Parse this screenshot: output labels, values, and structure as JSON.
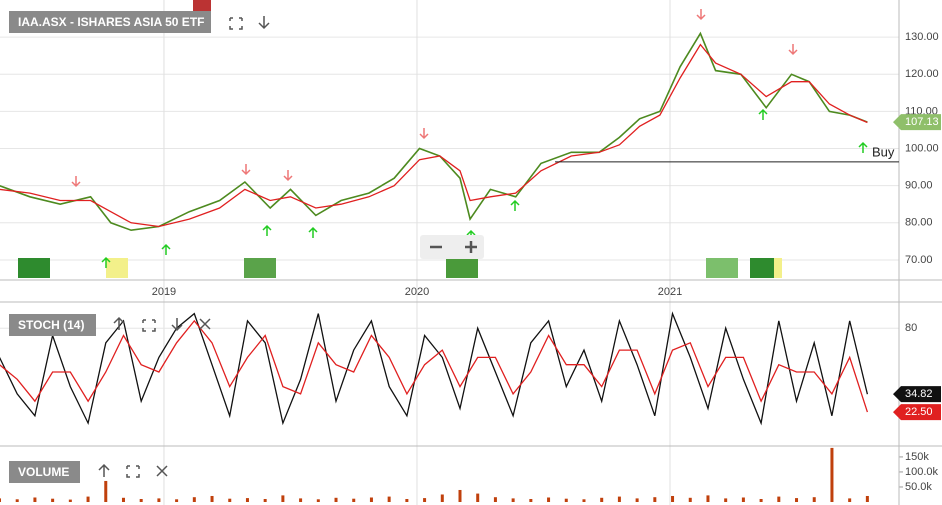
{
  "chart_data": [
    {
      "type": "line",
      "title": "IAA.ASX - ISHARES ASIA 50 ETF",
      "x": [
        2018.35,
        2018.47,
        2018.59,
        2018.71,
        2018.79,
        2018.87,
        2018.98,
        2019.1,
        2019.22,
        2019.32,
        2019.42,
        2019.5,
        2019.6,
        2019.7,
        2019.81,
        2019.91,
        2020.01,
        2020.09,
        2020.17,
        2020.21,
        2020.29,
        2020.39,
        2020.49,
        2020.61,
        2020.72,
        2020.8,
        2020.88,
        2020.96,
        2021.04,
        2021.12,
        2021.18,
        2021.28,
        2021.38,
        2021.48,
        2021.55,
        2021.63,
        2021.71,
        2021.78
      ],
      "series": [
        {
          "color": "#4d8a1f",
          "values": [
            90,
            87,
            85,
            87,
            80,
            78,
            79,
            83,
            86,
            91,
            84,
            89,
            82,
            86,
            88,
            92,
            100,
            98,
            92,
            81,
            89,
            87,
            96,
            99,
            99,
            103,
            108,
            110,
            122,
            131,
            121,
            120,
            111,
            120,
            118,
            110,
            109,
            107.13
          ]
        },
        {
          "color": "#e02020",
          "values": [
            89,
            88,
            86,
            86,
            83,
            80,
            79,
            81,
            84,
            89,
            86,
            87,
            84,
            85,
            87,
            90,
            97,
            98,
            94,
            86,
            87,
            88,
            94,
            98,
            99,
            101,
            106,
            109,
            119,
            128,
            123,
            120,
            114,
            118,
            118,
            112,
            109,
            107
          ]
        }
      ],
      "annotations": [
        {
          "text": "Buy",
          "value": 96.4
        }
      ],
      "xlim": [
        2018.352,
        2021.905
      ],
      "xticks": [
        2019,
        2020,
        2021
      ],
      "ylim": [
        64.6,
        140
      ],
      "yticks": [
        {
          "value": 70,
          "label": "70.00"
        },
        {
          "value": 80,
          "label": "80.00"
        },
        {
          "value": 90,
          "label": "90.00"
        },
        {
          "value": 100,
          "label": "100.00"
        },
        {
          "value": 110,
          "label": "110.00"
        },
        {
          "value": 120,
          "label": "120.00"
        },
        {
          "value": 130,
          "label": "130.00"
        }
      ],
      "grid": true
    },
    {
      "type": "line",
      "title": "STOCH (14)",
      "x": [
        2018.35,
        2018.42,
        2018.49,
        2018.56,
        2018.63,
        2018.7,
        2018.77,
        2018.84,
        2018.91,
        2018.98,
        2019.05,
        2019.12,
        2019.19,
        2019.26,
        2019.33,
        2019.4,
        2019.47,
        2019.54,
        2019.61,
        2019.68,
        2019.75,
        2019.82,
        2019.89,
        2019.96,
        2020.03,
        2020.1,
        2020.17,
        2020.24,
        2020.31,
        2020.38,
        2020.45,
        2020.52,
        2020.59,
        2020.66,
        2020.73,
        2020.8,
        2020.87,
        2020.94,
        2021.01,
        2021.08,
        2021.15,
        2021.22,
        2021.29,
        2021.36,
        2021.43,
        2021.5,
        2021.57,
        2021.64,
        2021.71,
        2021.78
      ],
      "series": [
        {
          "color": "#111111",
          "values": [
            60,
            35,
            20,
            75,
            40,
            15,
            70,
            85,
            30,
            60,
            80,
            90,
            55,
            20,
            85,
            70,
            15,
            45,
            90,
            30,
            65,
            85,
            40,
            20,
            75,
            60,
            25,
            80,
            50,
            20,
            70,
            85,
            40,
            65,
            30,
            85,
            55,
            20,
            90,
            60,
            25,
            80,
            45,
            15,
            85,
            30,
            70,
            20,
            85,
            34.82
          ]
        },
        {
          "color": "#e02020",
          "last_label": "22.50",
          "values": [
            55,
            45,
            30,
            50,
            50,
            30,
            50,
            75,
            55,
            50,
            70,
            85,
            70,
            40,
            60,
            75,
            40,
            35,
            70,
            55,
            50,
            75,
            60,
            35,
            55,
            65,
            40,
            60,
            60,
            35,
            50,
            75,
            55,
            55,
            40,
            65,
            65,
            35,
            65,
            70,
            40,
            60,
            60,
            30,
            55,
            50,
            50,
            35,
            60,
            22.5
          ]
        }
      ],
      "xlim": [
        2018.352,
        2021.905
      ],
      "ylim": [
        0,
        100
      ],
      "yticks": [
        80
      ],
      "grid": true
    },
    {
      "type": "bar",
      "title": "VOLUME",
      "color": "#c0400c",
      "x": [
        2018.35,
        2018.42,
        2018.49,
        2018.56,
        2018.63,
        2018.7,
        2018.77,
        2018.84,
        2018.91,
        2018.98,
        2019.05,
        2019.12,
        2019.19,
        2019.26,
        2019.33,
        2019.4,
        2019.47,
        2019.54,
        2019.61,
        2019.68,
        2019.75,
        2019.82,
        2019.89,
        2019.96,
        2020.03,
        2020.1,
        2020.17,
        2020.24,
        2020.31,
        2020.38,
        2020.45,
        2020.52,
        2020.59,
        2020.66,
        2020.73,
        2020.8,
        2020.87,
        2020.94,
        2021.01,
        2021.08,
        2021.15,
        2021.22,
        2021.29,
        2021.36,
        2021.43,
        2021.5,
        2021.57,
        2021.64,
        2021.71,
        2021.78
      ],
      "values": [
        12000,
        9000,
        15000,
        11000,
        8000,
        18000,
        70000,
        14000,
        10000,
        12000,
        9000,
        16000,
        20000,
        11000,
        13000,
        10000,
        22000,
        12000,
        9000,
        14000,
        11000,
        15000,
        18000,
        10000,
        13000,
        25000,
        40000,
        28000,
        16000,
        12000,
        10000,
        15000,
        11000,
        9000,
        14000,
        18000,
        12000,
        16000,
        20000,
        14000,
        22000,
        12000,
        15000,
        10000,
        18000,
        13000,
        16000,
        180000,
        12000,
        20000
      ],
      "xlim": [
        2018.352,
        2021.905
      ],
      "ylim": [
        0,
        183000
      ],
      "yticks": [
        {
          "value": 50000,
          "label": "50.0k"
        },
        {
          "value": 100000,
          "label": "100.0k"
        },
        {
          "value": 150000,
          "label": "150k"
        }
      ],
      "grid": false
    }
  ]
}
